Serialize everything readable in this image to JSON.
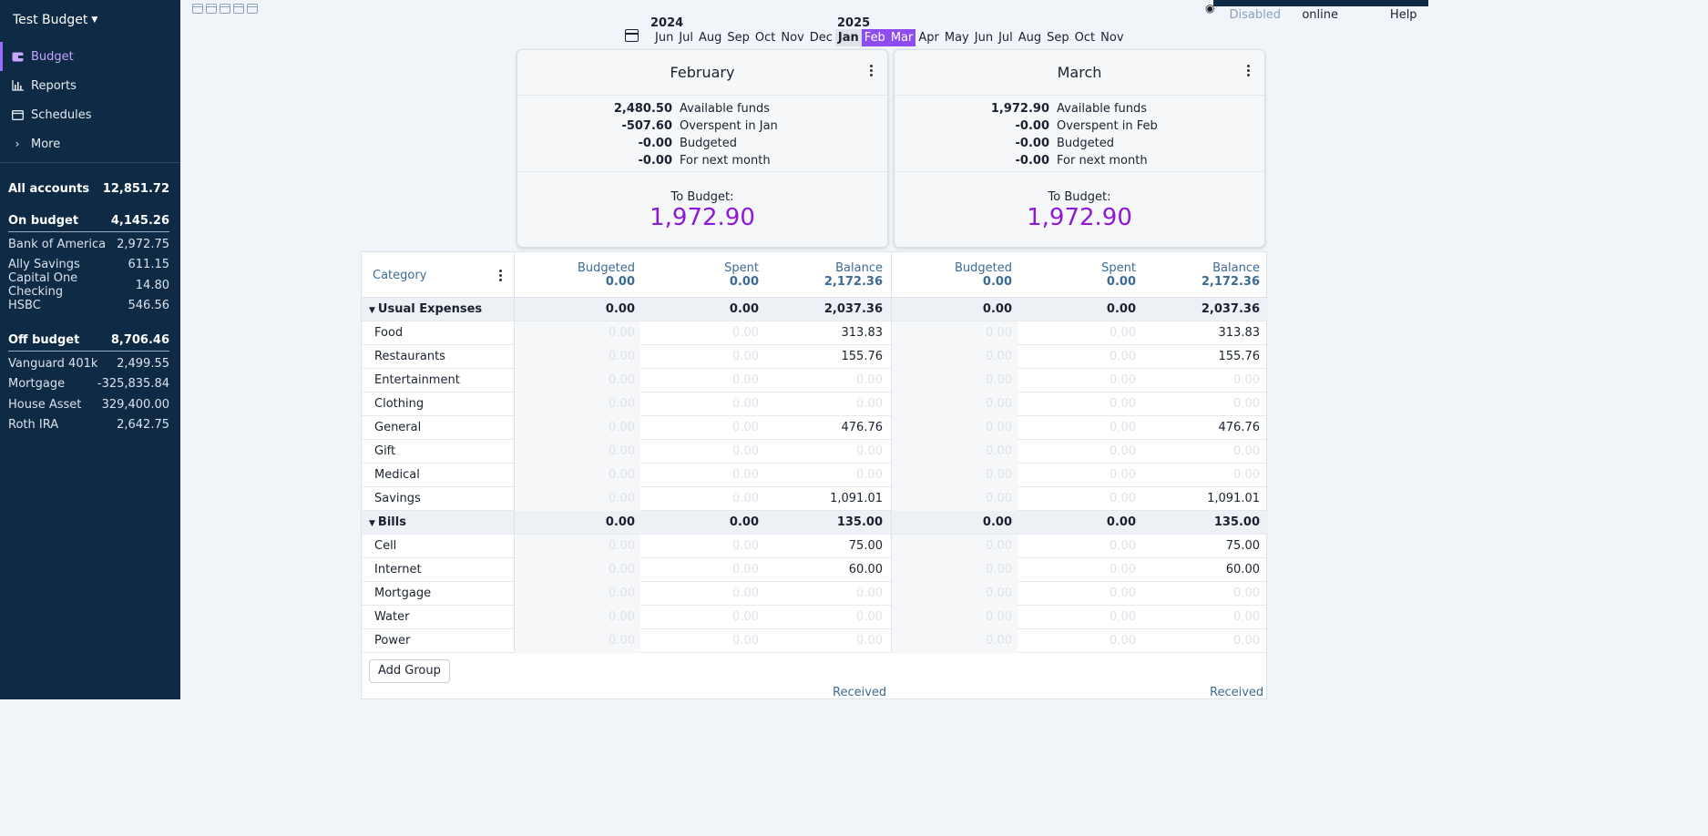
{
  "sidebar": {
    "budget_name": "Test Budget",
    "nav": [
      {
        "label": "Budget",
        "icon": "wallet-icon"
      },
      {
        "label": "Reports",
        "icon": "bar-chart-icon"
      },
      {
        "label": "Schedules",
        "icon": "calendar-icon"
      },
      {
        "label": "More",
        "icon": "chevron-right-icon"
      }
    ],
    "all_accounts": {
      "label": "All accounts",
      "value": "12,851.72"
    },
    "on_budget": {
      "label": "On budget",
      "value": "4,145.26",
      "accounts": [
        {
          "name": "Bank of America",
          "value": "2,972.75"
        },
        {
          "name": "Ally Savings",
          "value": "611.15"
        },
        {
          "name": "Capital One Checking",
          "value": "14.80"
        },
        {
          "name": "HSBC",
          "value": "546.56"
        }
      ]
    },
    "off_budget": {
      "label": "Off budget",
      "value": "8,706.46",
      "accounts": [
        {
          "name": "Vanguard 401k",
          "value": "2,499.55"
        },
        {
          "name": "Mortgage",
          "value": "-325,835.84"
        },
        {
          "name": "House Asset",
          "value": "329,400.00"
        },
        {
          "name": "Roth IRA",
          "value": "2,642.75"
        }
      ]
    }
  },
  "topbar": {
    "privacy_status": "Disabled",
    "server_status": "Server online",
    "help": "Help"
  },
  "month_picker": {
    "year_2024": "2024",
    "year_2025": "2025",
    "months": [
      "Jun",
      "Jul",
      "Aug",
      "Sep",
      "Oct",
      "Nov",
      "Dec",
      "Jan",
      "Feb",
      "Mar",
      "Apr",
      "May",
      "Jun",
      "Jul",
      "Aug",
      "Sep",
      "Oct",
      "Nov"
    ],
    "current": "Jan",
    "selected": [
      "Feb",
      "Mar"
    ]
  },
  "cards": [
    {
      "month": "February",
      "available_funds": "2,480.50",
      "available_label": "Available funds",
      "overspent": "-507.60",
      "overspent_label": "Overspent in Jan",
      "budgeted": "-0.00",
      "budgeted_label": "Budgeted",
      "next_month": "-0.00",
      "next_month_label": "For next month",
      "to_budget_label": "To Budget:",
      "to_budget": "1,972.90"
    },
    {
      "month": "March",
      "available_funds": "1,972.90",
      "available_label": "Available funds",
      "overspent": "-0.00",
      "overspent_label": "Overspent in Feb",
      "budgeted": "-0.00",
      "budgeted_label": "Budgeted",
      "next_month": "-0.00",
      "next_month_label": "For next month",
      "to_budget_label": "To Budget:",
      "to_budget": "1,972.90"
    }
  ],
  "table": {
    "category_header": "Category",
    "columns": {
      "budgeted": "Budgeted",
      "spent": "Spent",
      "balance": "Balance"
    },
    "totals": [
      {
        "budgeted": "0.00",
        "spent": "0.00",
        "balance": "2,172.36"
      },
      {
        "budgeted": "0.00",
        "spent": "0.00",
        "balance": "2,172.36"
      }
    ],
    "rows": [
      {
        "name": "Usual Expenses",
        "group": true,
        "m1": [
          "0.00",
          "0.00",
          "2,037.36"
        ],
        "m2": [
          "0.00",
          "0.00",
          "2,037.36"
        ]
      },
      {
        "name": "Food",
        "group": false,
        "m1": [
          "0.00",
          "0.00",
          "313.83"
        ],
        "m2": [
          "0.00",
          "0.00",
          "313.83"
        ]
      },
      {
        "name": "Restaurants",
        "group": false,
        "m1": [
          "0.00",
          "0.00",
          "155.76"
        ],
        "m2": [
          "0.00",
          "0.00",
          "155.76"
        ]
      },
      {
        "name": "Entertainment",
        "group": false,
        "m1": [
          "0.00",
          "0.00",
          "0.00"
        ],
        "m2": [
          "0.00",
          "0.00",
          "0.00"
        ]
      },
      {
        "name": "Clothing",
        "group": false,
        "m1": [
          "0.00",
          "0.00",
          "0.00"
        ],
        "m2": [
          "0.00",
          "0.00",
          "0.00"
        ]
      },
      {
        "name": "General",
        "group": false,
        "m1": [
          "0.00",
          "0.00",
          "476.76"
        ],
        "m2": [
          "0.00",
          "0.00",
          "476.76"
        ]
      },
      {
        "name": "Gift",
        "group": false,
        "m1": [
          "0.00",
          "0.00",
          "0.00"
        ],
        "m2": [
          "0.00",
          "0.00",
          "0.00"
        ]
      },
      {
        "name": "Medical",
        "group": false,
        "m1": [
          "0.00",
          "0.00",
          "0.00"
        ],
        "m2": [
          "0.00",
          "0.00",
          "0.00"
        ]
      },
      {
        "name": "Savings",
        "group": false,
        "m1": [
          "0.00",
          "0.00",
          "1,091.01"
        ],
        "m2": [
          "0.00",
          "0.00",
          "1,091.01"
        ]
      },
      {
        "name": "Bills",
        "group": true,
        "m1": [
          "0.00",
          "0.00",
          "135.00"
        ],
        "m2": [
          "0.00",
          "0.00",
          "135.00"
        ]
      },
      {
        "name": "Cell",
        "group": false,
        "m1": [
          "0.00",
          "0.00",
          "75.00"
        ],
        "m2": [
          "0.00",
          "0.00",
          "75.00"
        ]
      },
      {
        "name": "Internet",
        "group": false,
        "m1": [
          "0.00",
          "0.00",
          "60.00"
        ],
        "m2": [
          "0.00",
          "0.00",
          "60.00"
        ]
      },
      {
        "name": "Mortgage",
        "group": false,
        "m1": [
          "0.00",
          "0.00",
          "0.00"
        ],
        "m2": [
          "0.00",
          "0.00",
          "0.00"
        ]
      },
      {
        "name": "Water",
        "group": false,
        "m1": [
          "0.00",
          "0.00",
          "0.00"
        ],
        "m2": [
          "0.00",
          "0.00",
          "0.00"
        ]
      },
      {
        "name": "Power",
        "group": false,
        "m1": [
          "0.00",
          "0.00",
          "0.00"
        ],
        "m2": [
          "0.00",
          "0.00",
          "0.00"
        ]
      }
    ],
    "add_group": "Add Group",
    "received": "Received"
  },
  "colors": {
    "sidebar_bg": "#0f2a44",
    "accent": "#8f4cf0",
    "to_budget": "#8f19d9",
    "header_text": "#3d6a96"
  }
}
